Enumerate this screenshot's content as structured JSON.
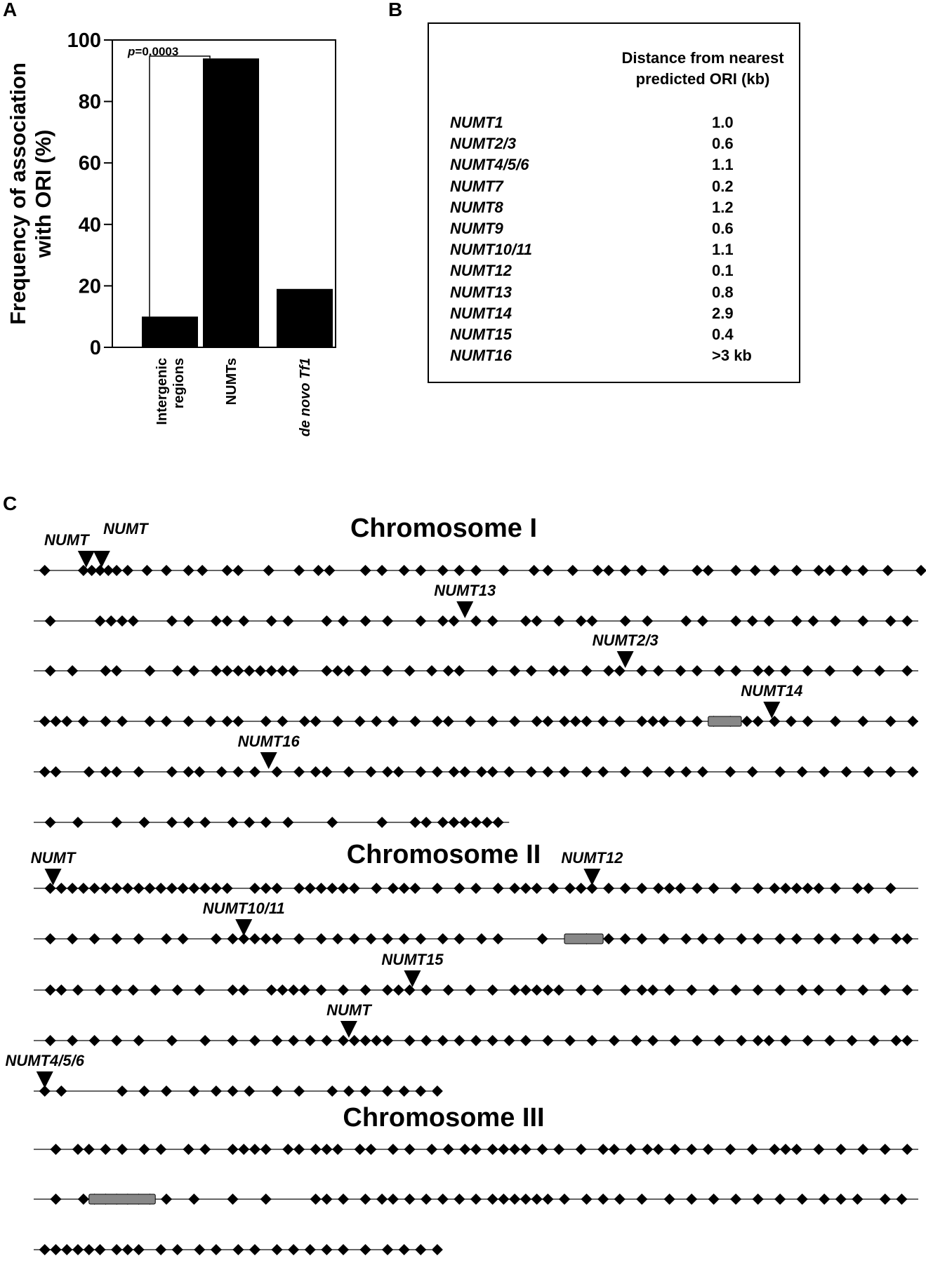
{
  "panel_labels": {
    "a": "A",
    "b": "B",
    "c": "C"
  },
  "chart_data": [
    {
      "type": "bar",
      "panel": "A",
      "categories": [
        "Intergenic regions",
        "NUMTs",
        "de novo Tf1"
      ],
      "values": [
        10,
        94,
        19
      ],
      "ylabel": "Frequency of association with ORI (%)",
      "ylabel_lines": [
        "Frequency of association",
        "with ORI (%)"
      ],
      "xlabel": "",
      "ylim": [
        0,
        100
      ],
      "yticks": [
        0,
        20,
        40,
        60,
        80,
        100
      ],
      "annotation": "p=0.0003",
      "annotation_p": "p",
      "annotation_rest": "=0.0003",
      "bar_color": "#000000",
      "grid": false
    },
    {
      "type": "table",
      "panel": "B",
      "header_line1": "Distance from nearest",
      "header_line2": "predicted ORI (kb)",
      "rows": [
        {
          "name": "NUMT1",
          "value": "1.0"
        },
        {
          "name": "NUMT2/3",
          "value": "0.6"
        },
        {
          "name": "NUMT4/5/6",
          "value": "1.1"
        },
        {
          "name": "NUMT7",
          "value": "0.2"
        },
        {
          "name": "NUMT8",
          "value": "1.2"
        },
        {
          "name": "NUMT9",
          "value": "0.6"
        },
        {
          "name": "NUMT10/11",
          "value": "1.1"
        },
        {
          "name": "NUMT12",
          "value": "0.1"
        },
        {
          "name": "NUMT13",
          "value": "0.8"
        },
        {
          "name": "NUMT14",
          "value": "2.9"
        },
        {
          "name": "NUMT15",
          "value": "0.4"
        },
        {
          "name": "NUMT16",
          "value": ">3 kb"
        }
      ]
    },
    {
      "type": "scatter",
      "panel": "C",
      "marker": "diamond",
      "marker_color": "#000000",
      "line_color": "#666666",
      "chromosomes": [
        {
          "title": "Chromosome I",
          "lines": [
            {
              "ori": [
                2,
                9,
                10.5,
                12,
                13.5,
                15,
                17,
                20.5,
                24,
                28,
                30.5,
                35,
                37,
                42.5,
                48,
                51.5,
                53.5,
                60,
                63,
                67,
                70,
                74,
                77,
                80,
                85,
                90.5,
                93,
                97.5,
                102,
                104,
                107,
                110,
                114,
                120,
                122,
                127,
                130.5,
                134,
                138,
                142,
                144,
                147,
                150,
                154.5,
                160.5,
                163
              ]
            },
            {
              "ori": [
                3,
                12,
                14,
                16,
                18,
                25,
                28,
                33,
                35,
                38,
                43,
                46,
                53,
                56,
                60,
                64,
                70,
                74,
                76,
                80,
                83,
                89,
                91,
                95,
                99,
                101,
                107,
                111,
                118,
                121,
                127,
                130,
                133,
                138,
                141,
                145,
                150,
                155,
                158
              ]
            },
            {
              "ori": [
                3,
                7,
                13,
                15,
                21,
                26,
                29,
                33,
                35,
                37,
                39,
                41,
                43,
                45,
                47,
                53,
                55,
                57,
                60,
                64,
                68,
                72,
                75,
                77,
                83,
                87,
                90,
                94,
                96,
                100,
                104,
                106,
                110,
                113,
                117,
                120,
                124,
                127,
                131,
                133,
                136,
                140,
                144,
                149,
                153,
                158
              ]
            },
            {
              "ori": [
                2,
                4,
                6,
                9,
                13,
                16,
                21,
                24,
                28,
                32,
                35,
                37,
                42,
                45,
                49,
                51,
                55,
                59,
                62,
                65,
                69,
                73,
                75,
                79,
                83,
                87,
                91,
                93,
                96,
                98,
                100,
                103,
                106,
                110,
                112,
                114,
                117,
                120,
                123,
                126,
                129,
                131,
                134,
                137,
                140,
                145,
                150,
                155,
                159
              ]
            },
            {
              "ori": [
                2,
                4,
                10,
                13,
                15,
                19,
                25,
                28,
                30,
                34,
                37,
                40,
                44,
                48,
                51,
                53,
                57,
                61,
                64,
                66,
                70,
                73,
                76,
                78,
                81,
                83,
                86,
                90,
                93,
                96,
                100,
                103,
                107,
                111,
                115,
                118,
                121,
                126,
                130,
                135,
                139,
                143,
                147,
                151,
                155,
                159
              ]
            },
            {
              "ori": [
                3,
                8,
                15,
                20,
                25,
                28,
                31,
                36,
                39,
                42,
                46,
                54,
                63,
                69,
                71,
                74,
                76,
                78,
                80,
                82,
                84
              ]
            }
          ]
        },
        {
          "title": "Chromosome II",
          "lines": [
            {
              "ori": [
                3,
                5,
                7,
                9,
                11,
                13,
                15,
                17,
                19,
                21,
                23,
                25,
                27,
                29,
                31,
                33,
                35,
                40,
                42,
                44,
                48,
                50,
                52,
                54,
                56,
                58,
                62,
                65,
                67,
                69,
                73,
                77,
                80,
                84,
                87,
                89,
                91,
                94,
                97,
                99,
                101,
                104,
                107,
                110,
                113,
                115,
                117,
                120,
                123,
                127,
                131,
                134,
                136,
                138,
                140,
                142,
                145,
                149,
                151,
                155
              ]
            },
            {
              "ori": [
                3,
                7,
                11,
                15,
                19,
                24,
                27,
                33,
                36,
                38,
                40,
                42,
                44,
                48,
                52,
                55,
                58,
                61,
                64,
                67,
                70,
                74,
                77,
                81,
                84,
                92,
                100,
                104,
                107,
                110,
                114,
                118,
                121,
                124,
                128,
                131,
                135,
                138,
                142,
                145,
                149,
                152,
                156,
                158
              ]
            },
            {
              "ori": [
                3,
                5,
                8,
                12,
                15,
                18,
                22,
                26,
                30,
                36,
                38,
                43,
                45,
                47,
                49,
                52,
                56,
                60,
                64,
                66,
                68,
                71,
                75,
                79,
                83,
                87,
                89,
                91,
                93,
                95,
                99,
                102,
                107,
                110,
                112,
                115,
                119,
                123,
                127,
                131,
                135,
                139,
                142,
                146,
                150,
                154,
                158
              ]
            },
            {
              "ori": [
                3,
                7,
                11,
                15,
                19,
                25,
                31,
                36,
                40,
                44,
                47,
                50,
                53,
                56,
                58,
                60,
                62,
                64,
                68,
                71,
                74,
                77,
                80,
                83,
                86,
                89,
                93,
                97,
                101,
                105,
                109,
                112,
                116,
                120,
                124,
                128,
                131,
                133,
                136,
                140,
                144,
                148,
                152,
                156,
                158
              ]
            },
            {
              "ori": [
                2,
                5,
                16,
                20,
                24,
                29,
                33,
                36,
                39,
                44,
                48,
                54,
                57,
                60,
                64,
                67,
                70,
                73,
                76,
                80
              ]
            }
          ]
        },
        {
          "title": "Chromosome III",
          "lines": [
            {
              "ori": [
                4,
                8,
                10,
                13,
                16,
                20,
                23,
                28,
                31,
                36,
                38,
                40,
                42,
                46,
                48,
                51,
                53,
                55,
                59,
                61,
                65,
                68,
                72,
                75,
                78,
                80,
                83,
                85,
                87,
                89,
                92,
                95,
                99,
                103,
                105,
                108,
                111,
                113,
                116,
                119,
                122,
                126,
                130,
                134,
                136,
                138,
                142,
                146,
                150,
                154,
                158
              ]
            },
            {
              "ori": [
                4,
                9,
                11,
                13,
                15,
                17,
                19,
                21,
                24,
                29,
                36,
                42,
                51,
                53,
                56,
                60,
                63,
                65,
                68,
                71,
                74,
                77,
                80,
                83,
                85,
                87,
                89,
                91,
                93,
                96,
                100,
                103,
                106,
                110,
                115,
                119,
                123,
                127,
                131,
                135,
                139,
                143,
                146,
                149,
                154,
                157
              ]
            },
            {
              "ori": [
                2,
                4,
                6,
                8,
                10,
                12,
                15,
                17,
                19,
                23,
                26,
                30,
                33,
                37,
                40,
                44,
                47,
                50,
                53,
                56,
                60,
                64,
                67,
                70,
                73,
                76
              ]
            }
          ]
        }
      ],
      "numt_labels": [
        {
          "text": "NUMT",
          "chrom": 0,
          "line": 0,
          "pos": 9.5
        },
        {
          "text": "NUMT",
          "chrom": 0,
          "line": 0,
          "pos": 12.3
        },
        {
          "text": "NUMT13",
          "chrom": 0,
          "line": 1,
          "pos": 78
        },
        {
          "text": "NUMT2/3",
          "chrom": 0,
          "line": 2,
          "pos": 107
        },
        {
          "text": "NUMT14",
          "chrom": 0,
          "line": 3,
          "pos": 133.5
        },
        {
          "text": "NUMT16",
          "chrom": 0,
          "line": 4,
          "pos": 42.5
        },
        {
          "text": "NUMT",
          "chrom": 1,
          "line": 0,
          "pos": 3.5
        },
        {
          "text": "NUMT12",
          "chrom": 1,
          "line": 0,
          "pos": 101
        },
        {
          "text": "NUMT10/11",
          "chrom": 1,
          "line": 1,
          "pos": 38
        },
        {
          "text": "NUMT15",
          "chrom": 1,
          "line": 2,
          "pos": 68.5
        },
        {
          "text": "NUMT",
          "chrom": 1,
          "line": 3,
          "pos": 57
        },
        {
          "text": "NUMT4/5/6",
          "chrom": 1,
          "line": 4,
          "pos": 2
        }
      ],
      "centromere_blocks": [
        {
          "chrom": 0,
          "line": 3,
          "start": 122,
          "end": 128
        },
        {
          "chrom": 1,
          "line": 1,
          "start": 96,
          "end": 103
        },
        {
          "chrom": 2,
          "line": 1,
          "start": 10,
          "end": 22
        }
      ]
    }
  ]
}
